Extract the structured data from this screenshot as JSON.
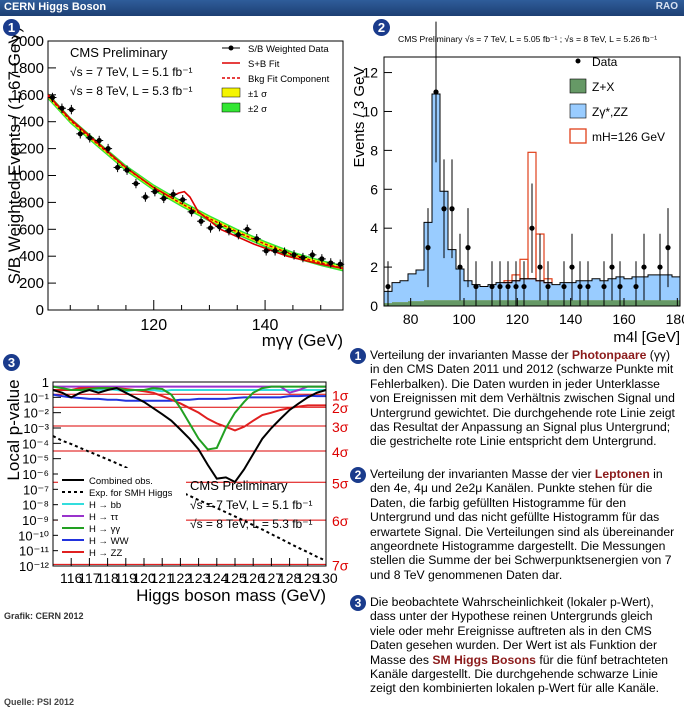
{
  "header": {
    "title": "CERN Higgs Boson",
    "rao": "RAO"
  },
  "badges": [
    "1",
    "2",
    "3"
  ],
  "source": "Quelle: PSI 2012",
  "credit": "Grafik: CERN 2012",
  "colors": {
    "badge": "#1a3b8c",
    "highlight": "#8b1a1a",
    "header": "#2f5d9a"
  },
  "descriptions": [
    {
      "num": "1",
      "pre": "Verteilung der invarianten Masse der ",
      "hl": "Photonpaare",
      "post": " (γγ) in den CMS Daten 2011 und 2012 (schwarze Punkte mit Fehlerbalken). Die Daten wurden in jeder Unterklasse von Ereignissen mit dem Verhältnis zwischen Signal und Untergrund gewichtet. Die durchgehende rote Linie zeigt das Resultat der Anpassung an Signal plus Untergrund; die gestrichelte rote Linie entspricht dem Untergrund."
    },
    {
      "num": "2",
      "pre": "Verteilung der invarianten Masse der vier ",
      "hl": "Leptonen",
      "post": " in den 4e, 4μ und 2e2μ Kanälen. Punkte stehen für die Daten, die farbig gefüllten Histogramme für den Untergrund und das nicht gefüllte Histogramm für das erwartete Signal. Die Verteilungen sind als übereinander angeordnete Histogramme dargestellt. Die Messungen stellen die Summe der bei Schwerpunktsenergien von 7 und 8 TeV genommenen Daten dar."
    },
    {
      "num": "3",
      "pre": "Die beobachtete Wahrscheinlichkeit (lokaler p-Wert), dass unter der Hypothese reinen Untergrunds gleich viele oder mehr Ereignisse auftreten als in den CMS Daten gesehen wurden. Der Wert ist als Funktion der Masse des ",
      "hl": "SM Higgs Bosons",
      "post": " für die fünf betrachteten Kanäle dargestellt. Die durchgehende schwarze Linie zeigt den kombinierten lokalen p-Wert für alle Kanäle."
    }
  ],
  "chart_data": [
    {
      "type": "scatter",
      "xlabel": "mγγ (GeV)",
      "ylabel": "S/B Weighted Events / (1.67 GeV)",
      "xlim": [
        101,
        154
      ],
      "ylim": [
        0,
        2000
      ],
      "xticks": [
        120,
        140
      ],
      "yticks": [
        0,
        200,
        400,
        600,
        800,
        1000,
        1200,
        1400,
        1600,
        1800,
        2000
      ],
      "annotations": [
        "CMS Preliminary",
        "√s = 7 TeV, L = 5.1 fb⁻¹",
        "√s = 8 TeV, L = 5.3 fb⁻¹"
      ],
      "legend": [
        "S/B Weighted Data",
        "S+B Fit",
        "Bkg Fit Component",
        "±1 σ",
        "±2 σ"
      ],
      "legend_position": "top-right",
      "x": [
        101.8,
        103.5,
        105.2,
        106.8,
        108.5,
        110.2,
        111.8,
        113.5,
        115.2,
        116.8,
        118.5,
        120.2,
        121.8,
        123.5,
        125.2,
        126.8,
        128.5,
        130.2,
        131.8,
        133.5,
        135.2,
        136.8,
        138.5,
        140.2,
        141.8,
        143.5,
        145.2,
        146.8,
        148.5,
        150.2,
        151.8,
        153.5
      ],
      "y": [
        1580,
        1500,
        1490,
        1310,
        1280,
        1260,
        1200,
        1060,
        1040,
        940,
        840,
        880,
        830,
        860,
        820,
        730,
        660,
        610,
        620,
        590,
        560,
        600,
        530,
        440,
        440,
        430,
        410,
        390,
        410,
        380,
        350,
        340
      ],
      "series": [
        {
          "name": "S+B Fit",
          "x": [
            101,
            105,
            110,
            115,
            120,
            123,
            124.5,
            125.5,
            126.5,
            128,
            132,
            138,
            144,
            150,
            154
          ],
          "y": [
            1600,
            1420,
            1240,
            1060,
            910,
            840,
            870,
            880,
            840,
            730,
            600,
            490,
            400,
            340,
            310
          ]
        },
        {
          "name": "Bkg Fit Component",
          "x": [
            101,
            105,
            110,
            115,
            120,
            125,
            130,
            135,
            140,
            145,
            150,
            154
          ],
          "y": [
            1590,
            1410,
            1230,
            1055,
            910,
            790,
            680,
            580,
            490,
            410,
            350,
            310
          ]
        }
      ]
    },
    {
      "type": "bar",
      "title": "CMS Preliminary   √s = 7 TeV, L = 5.05 fb⁻¹ ; √s = 8 TeV, L = 5.26 fb⁻¹",
      "xlabel": "m4l [GeV]",
      "ylabel": "Events / 3 GeV",
      "xlim": [
        70,
        181
      ],
      "ylim": [
        0,
        12.8
      ],
      "xticks": [
        80,
        100,
        120,
        140,
        160,
        180
      ],
      "yticks": [
        0,
        2,
        4,
        6,
        8,
        10,
        12
      ],
      "legend": [
        "Data",
        "Z+X",
        "Zγ*,ZZ",
        "mH=126 GeV"
      ],
      "legend_position": "top-right",
      "bin_edges": [
        70,
        73,
        76,
        79,
        82,
        85,
        88,
        91,
        94,
        97,
        100,
        103,
        106,
        109,
        112,
        115,
        118,
        121,
        124,
        127,
        130,
        133,
        136,
        139,
        142,
        145,
        148,
        151,
        154,
        157,
        160,
        163,
        166,
        169,
        172,
        175,
        178,
        181
      ],
      "series": [
        {
          "name": "Z+X",
          "values": [
            0.15,
            0.2,
            0.2,
            0.25,
            0.25,
            0.3,
            0.3,
            0.3,
            0.3,
            0.3,
            0.3,
            0.3,
            0.3,
            0.3,
            0.3,
            0.3,
            0.3,
            0.3,
            0.3,
            0.3,
            0.3,
            0.3,
            0.3,
            0.3,
            0.3,
            0.3,
            0.3,
            0.3,
            0.3,
            0.3,
            0.3,
            0.3,
            0.3,
            0.3,
            0.3,
            0.3,
            0.3
          ]
        },
        {
          "name": "Zγ*,ZZ",
          "values": [
            0.6,
            1.0,
            1.1,
            1.4,
            1.6,
            4.0,
            10.6,
            5.6,
            2.6,
            1.6,
            1.0,
            0.8,
            0.7,
            0.8,
            0.9,
            0.9,
            1.0,
            1.1,
            1.1,
            1.0,
            0.9,
            0.8,
            0.9,
            0.9,
            1.0,
            1.0,
            1.1,
            1.0,
            1.1,
            1.2,
            1.1,
            1.2,
            1.2,
            1.3,
            1.3,
            1.3,
            1.2
          ]
        },
        {
          "name": "mH=126 GeV",
          "values": [
            0,
            0,
            0,
            0,
            0,
            0,
            0,
            0,
            0,
            0,
            0,
            0,
            0,
            0,
            0,
            0.1,
            0.3,
            1.0,
            6.5,
            2.4,
            0.2,
            0,
            0,
            0,
            0,
            0,
            0,
            0,
            0,
            0,
            0,
            0,
            0,
            0,
            0,
            0,
            0
          ]
        }
      ],
      "data_points": {
        "x": [
          71.5,
          86.5,
          89.5,
          92.5,
          95.5,
          98.5,
          101.5,
          104.5,
          110.5,
          113.5,
          116.5,
          119.5,
          122.5,
          125.5,
          128.5,
          131.5,
          137.5,
          140.5,
          143.5,
          146.5,
          152.5,
          155.5,
          158.5,
          164.5,
          167.5,
          173.5,
          176.5
        ],
        "y": [
          1,
          3,
          11,
          5,
          5,
          2,
          3,
          1,
          1,
          1,
          1,
          1,
          1,
          4,
          2,
          1,
          1,
          2,
          1,
          1,
          1,
          2,
          1,
          1,
          2,
          2,
          3
        ]
      }
    },
    {
      "type": "line",
      "xlabel": "Higgs boson mass (GeV)",
      "ylabel": "Local p-value",
      "xlim": [
        115,
        130
      ],
      "ylog": true,
      "ylim": [
        1e-12,
        1
      ],
      "xticks": [
        116,
        117,
        118,
        119,
        120,
        121,
        122,
        123,
        124,
        125,
        126,
        127,
        128,
        129,
        130
      ],
      "yticks": [
        "1",
        "10⁻¹",
        "10⁻²",
        "10⁻³",
        "10⁻⁴",
        "10⁻⁵",
        "10⁻⁶",
        "10⁻⁷",
        "10⁻⁸",
        "10⁻⁹",
        "10⁻¹⁰",
        "10⁻¹¹",
        "10⁻¹²"
      ],
      "sigma_lines": [
        {
          "label": "1σ",
          "p": 0.1587
        },
        {
          "label": "2σ",
          "p": 0.02275
        },
        {
          "label": "3σ",
          "p": 0.00135
        },
        {
          "label": "4σ",
          "p": 3.17e-05
        },
        {
          "label": "5σ",
          "p": 2.87e-07
        },
        {
          "label": "6σ",
          "p": 9.87e-10
        },
        {
          "label": "7σ",
          "p": 1.28e-12
        }
      ],
      "annotations": [
        "CMS Preliminary",
        "√s = 7 TeV, L = 5.1 fb⁻¹",
        "√s = 8 TeV, L = 5.3 fb⁻¹"
      ],
      "legend": [
        "Combined obs.",
        "Exp. for SMH Higgs",
        "H → bb",
        "H → ττ",
        "H → γγ",
        "H → WW",
        "H → ZZ"
      ],
      "legend_position": "bottom-left",
      "x": [
        115,
        115.5,
        116,
        116.5,
        117,
        117.5,
        118,
        118.5,
        119,
        119.5,
        120,
        120.5,
        121,
        121.5,
        122,
        122.5,
        123,
        123.5,
        124,
        124.5,
        125,
        125.5,
        126,
        126.5,
        127,
        127.5,
        128,
        128.5,
        129,
        129.5,
        130
      ],
      "series": [
        {
          "name": "Combined obs.",
          "y": [
            0.3,
            0.2,
            0.1,
            0.2,
            0.3,
            0.2,
            0.3,
            0.4,
            0.2,
            0.1,
            0.05,
            0.02,
            0.008,
            0.003,
            0.0008,
            0.0002,
            4e-05,
            4e-06,
            5e-07,
            6e-07,
            3e-07,
            2e-06,
            2e-05,
            0.0002,
            0.001,
            0.004,
            0.015,
            0.04,
            0.1,
            0.2,
            0.3
          ]
        },
        {
          "name": "Exp. for SMH Higgs",
          "y": [
            0.0003,
            0.00015,
            9e-05,
            5e-05,
            2.8e-05,
            1.6e-05,
            9e-06,
            5e-06,
            2.7e-06,
            1.5e-06,
            8e-07,
            4.4e-07,
            2.4e-07,
            1.3e-07,
            7e-08,
            3.8e-08,
            2e-08,
            1.1e-08,
            6e-09,
            3.2e-09,
            1.7e-09,
            9e-10,
            4.6e-10,
            2.4e-10,
            1.2e-10,
            6e-11,
            3e-11,
            1.5e-11,
            8e-12,
            4e-12,
            2.2e-12
          ]
        },
        {
          "name": "H → bb",
          "y": [
            0.3,
            0.3,
            0.3,
            0.3,
            0.3,
            0.3,
            0.35,
            0.3,
            0.25,
            0.3,
            0.3,
            0.3,
            0.25,
            0.3,
            0.3,
            0.3,
            0.3,
            0.3,
            0.3,
            0.3,
            0.3,
            0.3,
            0.3,
            0.3,
            0.3,
            0.3,
            0.3,
            0.3,
            0.3,
            0.3,
            0.3
          ]
        },
        {
          "name": "H → ττ",
          "y": [
            0.5,
            0.5,
            0.5,
            0.5,
            0.5,
            0.5,
            0.5,
            0.5,
            0.5,
            0.5,
            0.5,
            0.5,
            0.5,
            0.5,
            0.5,
            0.5,
            0.5,
            0.5,
            0.5,
            0.5,
            0.5,
            0.5,
            0.5,
            0.5,
            0.5,
            0.5,
            0.2,
            0.3,
            0.5,
            0.5,
            0.5
          ]
        },
        {
          "name": "H → γγ",
          "y": [
            0.5,
            0.4,
            0.3,
            0.3,
            0.35,
            0.4,
            0.4,
            0.4,
            0.3,
            0.3,
            0.3,
            0.4,
            0.35,
            0.15,
            0.02,
            0.002,
            0.0002,
            4e-05,
            5e-05,
            0.001,
            0.01,
            0.05,
            0.2,
            0.4,
            0.5,
            0.5,
            0.5,
            0.5,
            0.5,
            0.5,
            0.5
          ]
        },
        {
          "name": "H → WW",
          "y": [
            0.15,
            0.12,
            0.1,
            0.09,
            0.08,
            0.08,
            0.07,
            0.07,
            0.06,
            0.06,
            0.06,
            0.06,
            0.06,
            0.06,
            0.07,
            0.07,
            0.08,
            0.08,
            0.08,
            0.08,
            0.09,
            0.1,
            0.1,
            0.1,
            0.1,
            0.1,
            0.12,
            0.12,
            0.13,
            0.12,
            0.12
          ]
        },
        {
          "name": "H → ZZ",
          "y": [
            0.3,
            0.3,
            0.3,
            0.4,
            0.4,
            0.4,
            0.4,
            0.4,
            0.35,
            0.3,
            0.25,
            0.2,
            0.12,
            0.07,
            0.04,
            0.02,
            0.01,
            0.004,
            0.002,
            0.0012,
            0.0007,
            0.0012,
            0.003,
            0.007,
            0.01,
            0.015,
            0.02,
            0.025,
            0.03,
            0.03,
            0.03
          ]
        }
      ]
    }
  ]
}
